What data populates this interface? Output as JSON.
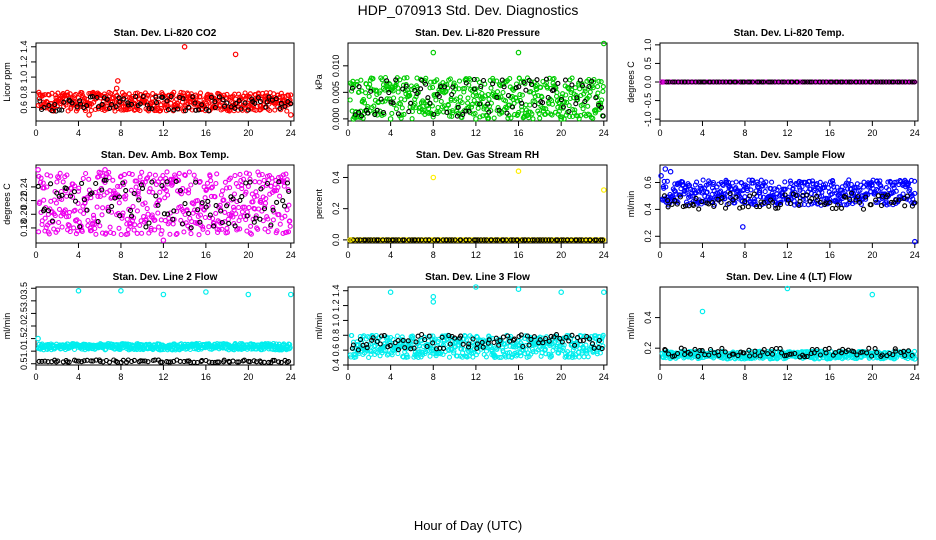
{
  "page": {
    "title": "HDP_070913  Std. Dev. Diagnostics",
    "xlabel": "Hour of Day (UTC)"
  },
  "chart_data": [
    {
      "type": "scatter",
      "title": "Stan. Dev. Li-820 CO2",
      "ylabel": "Licor ppm",
      "xlim": [
        0,
        24.3
      ],
      "ylim": [
        0.42,
        1.45
      ],
      "xticks": [
        0,
        4,
        8,
        12,
        16,
        20,
        24
      ],
      "yticks": [
        0.6,
        0.8,
        1.0,
        1.2,
        1.4
      ],
      "ytick_labels": [
        "0.6",
        "0.8",
        "1.0",
        "1.2",
        "1.4"
      ],
      "grid": false,
      "colors": {
        "primary": "#ff0000",
        "secondary": "#000000"
      },
      "band": {
        "primary": [
          0.55,
          0.8
        ],
        "secondary": [
          0.55,
          0.75
        ]
      },
      "points": [
        [
          14,
          1.4
        ],
        [
          18.8,
          1.3
        ],
        [
          7.7,
          0.95
        ],
        [
          7.6,
          0.85
        ],
        [
          24,
          0.5
        ],
        [
          5,
          0.5
        ]
      ]
    },
    {
      "type": "scatter",
      "title": "Stan. Dev. Li-820 Pressure",
      "ylabel": "kPa",
      "xlim": [
        0,
        24.3
      ],
      "ylim": [
        -0.0004,
        0.0143
      ],
      "xticks": [
        0,
        4,
        8,
        12,
        16,
        20,
        24
      ],
      "yticks": [
        0.0,
        0.005,
        0.01
      ],
      "ytick_labels": [
        "0.000",
        "0.005",
        "0.010"
      ],
      "grid": false,
      "colors": {
        "primary": "#00cc00",
        "secondary": "#000000"
      },
      "band": {
        "primary": [
          0.0,
          0.0078
        ],
        "secondary": [
          0.0005,
          0.0075
        ]
      },
      "points": [
        [
          8,
          0.0125
        ],
        [
          16,
          0.0125
        ],
        [
          24,
          0.0142
        ],
        [
          0.5,
          0.0
        ],
        [
          4,
          0.0
        ],
        [
          12,
          0.0
        ],
        [
          20,
          0.0
        ]
      ]
    },
    {
      "type": "scatter",
      "title": "Stan. Dev. Li-820 Temp.",
      "ylabel": "degrees C",
      "xlim": [
        0,
        24.3
      ],
      "ylim": [
        -1.05,
        1.05
      ],
      "xticks": [
        0,
        4,
        8,
        12,
        16,
        20,
        24
      ],
      "yticks": [
        -1.0,
        -0.5,
        0.0,
        0.5,
        1.0
      ],
      "ytick_labels": [
        "-1.0",
        "-0.5",
        "0.0",
        "0.5",
        "1.0"
      ],
      "grid": false,
      "colors": {
        "primary": "#dd00dd",
        "secondary": "#000000"
      },
      "band": {
        "primary": [
          0.0,
          0.0
        ],
        "secondary": [
          0.0,
          0.0
        ]
      },
      "points": [
        [
          0.2,
          0.0
        ]
      ]
    },
    {
      "type": "scatter",
      "title": "Stan. Dev. Amb. Box Temp.",
      "ylabel": "degrees C",
      "xlim": [
        0,
        24.3
      ],
      "ylim": [
        0.158,
        0.272
      ],
      "xticks": [
        0,
        4,
        8,
        12,
        16,
        20,
        24
      ],
      "yticks": [
        0.18,
        0.2,
        0.22,
        0.24
      ],
      "ytick_labels": [
        "0.18",
        "0.20",
        "0.22",
        "0.24"
      ],
      "grid": false,
      "colors": {
        "primary": "#ee00ee",
        "secondary": "#000000"
      },
      "band": {
        "primary": [
          0.17,
          0.262
        ],
        "secondary": [
          0.18,
          0.25
        ]
      },
      "points": [
        [
          0.2,
          0.265
        ],
        [
          12,
          0.162
        ],
        [
          6.5,
          0.265
        ]
      ]
    },
    {
      "type": "scatter",
      "title": "Stan. Dev. Gas Stream RH",
      "ylabel": "percent",
      "xlim": [
        0,
        24.3
      ],
      "ylim": [
        -0.02,
        0.48
      ],
      "xticks": [
        0,
        4,
        8,
        12,
        16,
        20,
        24
      ],
      "yticks": [
        0.0,
        0.2,
        0.4
      ],
      "ytick_labels": [
        "0.0",
        "0.2",
        "0.4"
      ],
      "grid": false,
      "colors": {
        "primary": "#ffee00",
        "secondary": "#000000"
      },
      "band": {
        "primary": [
          0.0,
          0.0
        ],
        "secondary": [
          0.0,
          0.0
        ]
      },
      "points": [
        [
          8,
          0.4
        ],
        [
          16,
          0.44
        ],
        [
          24,
          0.32
        ],
        [
          0.2,
          0.0
        ]
      ]
    },
    {
      "type": "scatter",
      "title": "Stan. Dev. Sample Flow",
      "ylabel": "ml/min",
      "xlim": [
        0,
        24.3
      ],
      "ylim": [
        0.15,
        0.73
      ],
      "xticks": [
        0,
        4,
        8,
        12,
        16,
        20,
        24
      ],
      "yticks": [
        0.2,
        0.4,
        0.6
      ],
      "ytick_labels": [
        "0.2",
        "0.4",
        "0.6"
      ],
      "grid": false,
      "colors": {
        "primary": "#0000ff",
        "secondary": "#000000"
      },
      "band": {
        "primary": [
          0.43,
          0.62
        ],
        "secondary": [
          0.4,
          0.52
        ]
      },
      "points": [
        [
          0.5,
          0.7
        ],
        [
          24,
          0.16
        ],
        [
          7.8,
          0.27
        ],
        [
          0.1,
          0.65
        ],
        [
          1,
          0.68
        ]
      ]
    },
    {
      "type": "scatter",
      "title": "Stan. Dev. Line 2 Flow",
      "ylabel": "ml/min",
      "xlim": [
        0,
        24.3
      ],
      "ylim": [
        0.45,
        3.55
      ],
      "xticks": [
        0,
        4,
        8,
        12,
        16,
        20,
        24
      ],
      "yticks": [
        0.5,
        1.0,
        1.5,
        2.0,
        2.5,
        3.0,
        3.5
      ],
      "ytick_labels": [
        "0.5",
        "1.0",
        "1.5",
        "2.0",
        "2.5",
        "3.0",
        "3.5"
      ],
      "grid": false,
      "colors": {
        "primary": "#00eeee",
        "secondary": "#000000"
      },
      "band": {
        "primary": [
          1.05,
          1.3
        ],
        "secondary": [
          0.55,
          0.65
        ]
      },
      "points": [
        [
          4,
          3.4
        ],
        [
          8,
          3.4
        ],
        [
          12,
          3.25
        ],
        [
          16,
          3.35
        ],
        [
          20,
          3.25
        ],
        [
          24,
          3.25
        ],
        [
          0.2,
          1.5
        ]
      ]
    },
    {
      "type": "scatter",
      "title": "Stan. Dev. Line 3 Flow",
      "ylabel": "ml/min",
      "xlim": [
        0,
        24.3
      ],
      "ylim": [
        0.4,
        1.45
      ],
      "xticks": [
        0,
        4,
        8,
        12,
        16,
        20,
        24
      ],
      "yticks": [
        0.4,
        0.6,
        0.8,
        1.0,
        1.2,
        1.4
      ],
      "ytick_labels": [
        "0.4",
        "0.6",
        "0.8",
        "1.0",
        "1.2",
        "1.4"
      ],
      "grid": false,
      "colors": {
        "primary": "#00eeee",
        "secondary": "#000000"
      },
      "band": {
        "primary": [
          0.5,
          0.8
        ],
        "secondary": [
          0.6,
          0.82
        ]
      },
      "points": [
        [
          4,
          1.38
        ],
        [
          8,
          1.25
        ],
        [
          12,
          1.45
        ],
        [
          16,
          1.42
        ],
        [
          20,
          1.38
        ],
        [
          24,
          1.38
        ],
        [
          8,
          1.32
        ]
      ]
    },
    {
      "type": "scatter",
      "title": "Stan. Dev. Line 4 (LT) Flow",
      "ylabel": "ml/min",
      "xlim": [
        0,
        24.3
      ],
      "ylim": [
        0.09,
        0.6
      ],
      "xticks": [
        0,
        4,
        8,
        12,
        16,
        20,
        24
      ],
      "yticks": [
        0.2,
        0.4
      ],
      "ytick_labels": [
        "0.2",
        "0.4"
      ],
      "grid": false,
      "colors": {
        "primary": "#00eeee",
        "secondary": "#000000"
      },
      "band": {
        "primary": [
          0.13,
          0.18
        ],
        "secondary": [
          0.14,
          0.2
        ]
      },
      "points": [
        [
          4,
          0.44
        ],
        [
          12,
          0.59
        ],
        [
          20,
          0.55
        ],
        [
          24,
          0.13
        ]
      ]
    }
  ]
}
